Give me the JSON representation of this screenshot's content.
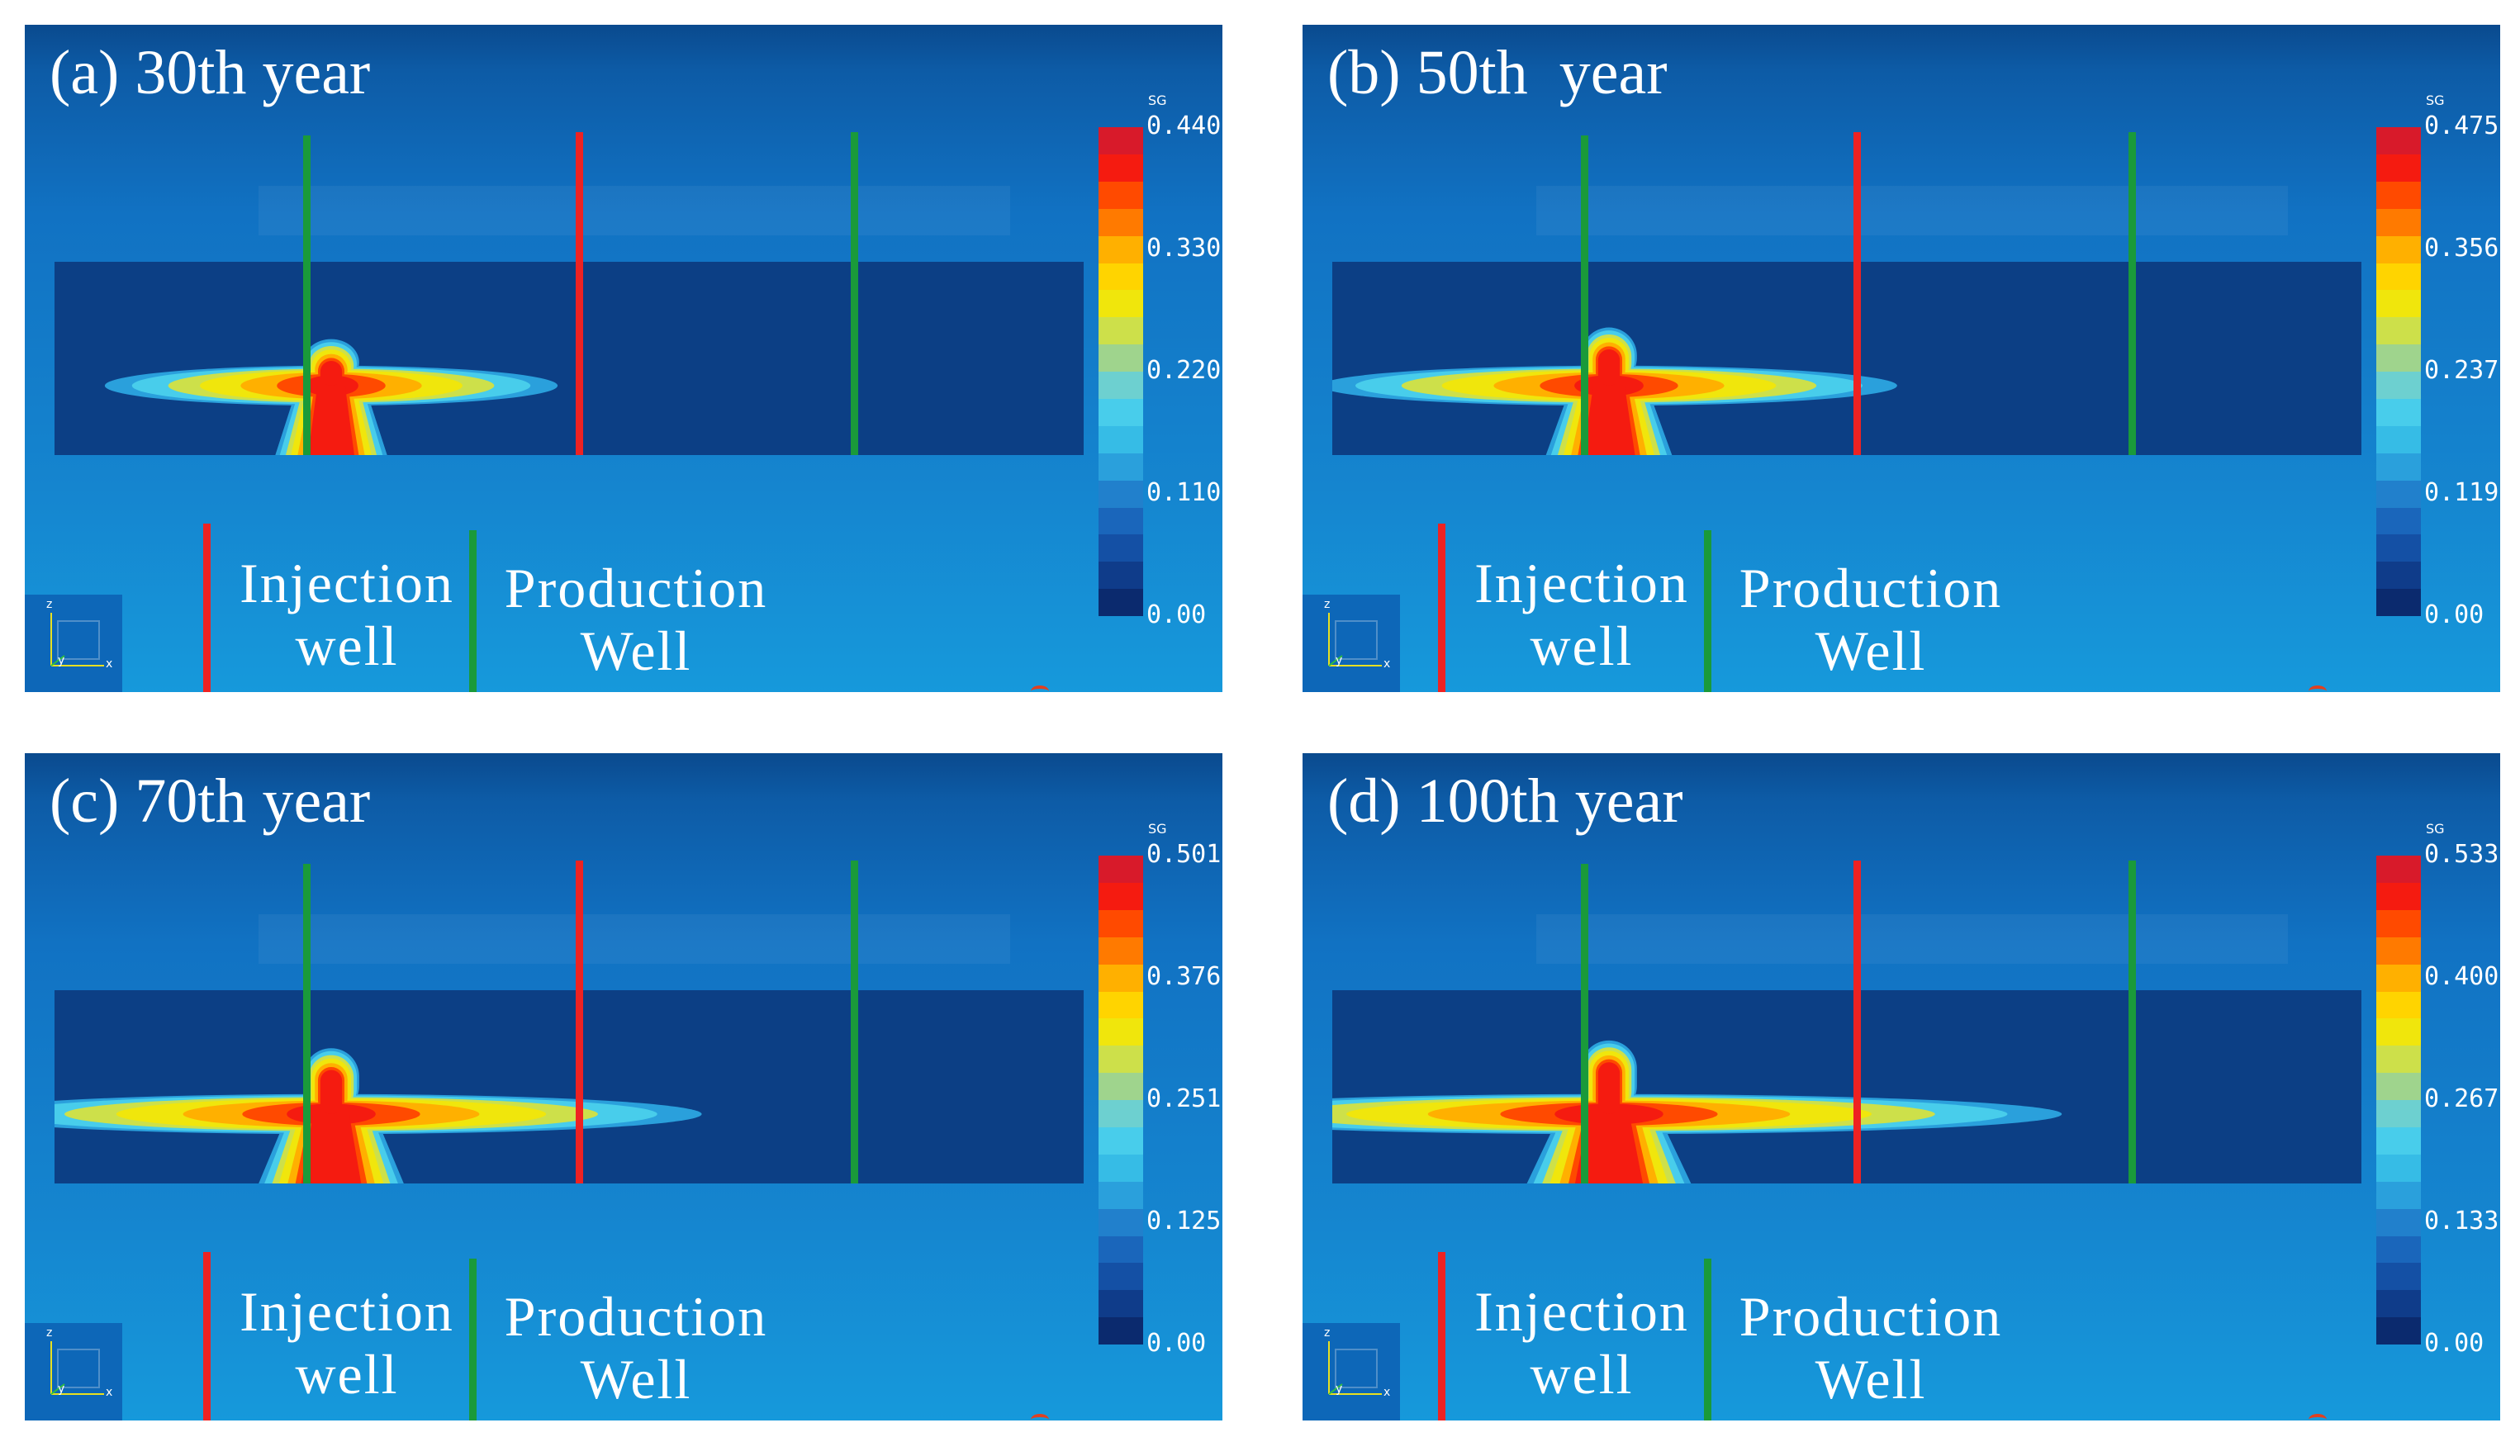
{
  "figure": {
    "colorbar_variable": "SG",
    "legend": {
      "injection_label_line1": "Injection",
      "injection_label_line2": "well",
      "production_label_line1": "Production",
      "production_label_line2": "Well"
    },
    "axis_triad": {
      "z": "z",
      "y": "y",
      "x": "x"
    },
    "colors": {
      "injection_well": "#ee2222",
      "production_well": "#1a9a3a",
      "background": "#1585cf",
      "reservoir": "#0c3f85"
    }
  },
  "colormap": [
    "#0b2a6e",
    "#0f3c8a",
    "#1450a5",
    "#1a66bb",
    "#2180cc",
    "#2aa0dc",
    "#36bce6",
    "#48cdeb",
    "#6dd0d0",
    "#9fd48d",
    "#cde04a",
    "#f0e60c",
    "#ffd400",
    "#ffb000",
    "#ff7a00",
    "#ff4a00",
    "#f51b10",
    "#d81a2a"
  ],
  "panels": [
    {
      "title": "(a) 30th year",
      "ticks": [
        "0.440",
        "0.330",
        "0.220",
        "0.110",
        "0.00"
      ],
      "max": 0.44,
      "plume_extent": 0.22,
      "plume_height": 0.6
    },
    {
      "title": "(b) 50th  year",
      "ticks": [
        "0.475",
        "0.356",
        "0.237",
        "0.119",
        "0.00"
      ],
      "max": 0.475,
      "plume_extent": 0.28,
      "plume_height": 0.66
    },
    {
      "title": "(c) 70th year",
      "ticks": [
        "0.501",
        "0.376",
        "0.251",
        "0.125",
        "0.00"
      ],
      "max": 0.501,
      "plume_extent": 0.36,
      "plume_height": 0.7
    },
    {
      "title": "(d) 100th year",
      "ticks": [
        "0.533",
        "0.400",
        "0.267",
        "0.133",
        "0.00"
      ],
      "max": 0.533,
      "plume_extent": 0.44,
      "plume_height": 0.74
    }
  ]
}
